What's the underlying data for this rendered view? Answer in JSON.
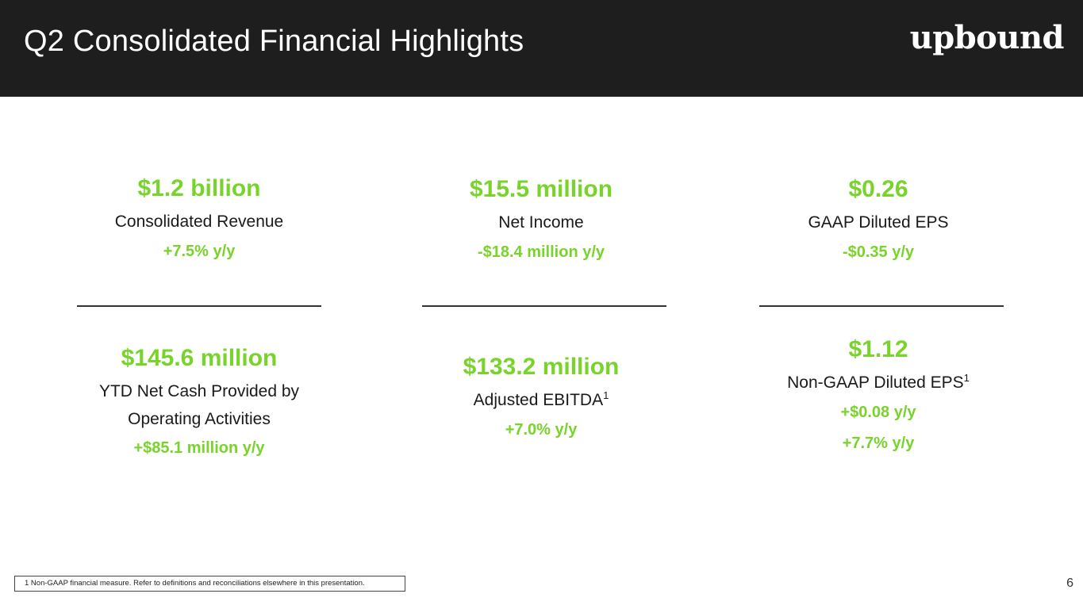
{
  "header": {
    "title": "Q2 Consolidated Financial Highlights",
    "logo_text": "upbound"
  },
  "metrics": {
    "revenue": {
      "value": "$1.2 billion",
      "label": "Consolidated Revenue",
      "change": "+7.5% y/y"
    },
    "net_income": {
      "value": "$15.5 million",
      "label": "Net Income",
      "change": "-$18.4 million y/y"
    },
    "gaap_eps": {
      "value": "$0.26",
      "label": "GAAP Diluted EPS",
      "change": "-$0.35 y/y"
    },
    "cash": {
      "value": "$145.6 million",
      "label_line1": "YTD Net Cash Provided by",
      "label_line2": "Operating Activities",
      "change": "+$85.1 million y/y"
    },
    "ebitda": {
      "value": "$133.2 million",
      "label": "Adjusted EBITDA",
      "footnote_mark": "1",
      "change": "+7.0% y/y"
    },
    "non_gaap_eps": {
      "value": "$1.12",
      "label": "Non-GAAP Diluted EPS",
      "footnote_mark": "1",
      "change1": "+$0.08 y/y",
      "change2": "+7.7% y/y"
    }
  },
  "footer": {
    "footnote": "1 Non-GAAP financial measure. Refer to definitions and reconciliations elsewhere in this presentation.",
    "page_number": "6"
  },
  "colors": {
    "accent_green": "#78d32b",
    "header_bg": "#1e1e1e"
  }
}
